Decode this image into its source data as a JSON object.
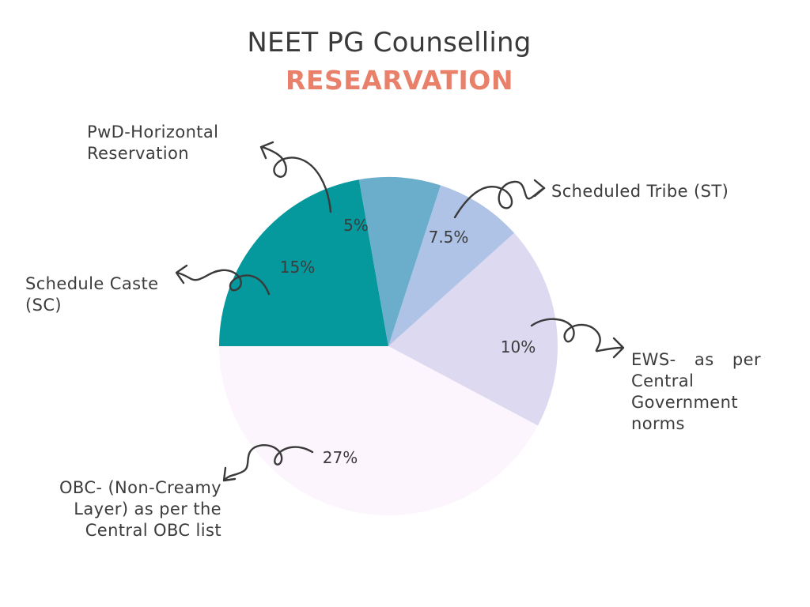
{
  "chart_data": {
    "type": "pie",
    "title": "NEET PG Counselling",
    "subtitle": "RESEARVATION",
    "slices": [
      {
        "label": "PwD-Horizontal Reservation",
        "value": 5,
        "display": "5%",
        "color": "#6aaecb"
      },
      {
        "label": "Scheduled Tribe (ST)",
        "value": 7.5,
        "display": "7.5%",
        "color": "#aec3e6"
      },
      {
        "label": "EWS- as per Central Government norms",
        "value": 10,
        "display": "10%",
        "color": "#dcd9f1"
      },
      {
        "label": "OBC- (Non-Creamy Layer) as per the Central OBC list",
        "value": 27,
        "display": "27%",
        "color": "#fdf5fd"
      },
      {
        "label": "Schedule Caste (SC)",
        "value": 15,
        "display": "15%",
        "color": "#05989c"
      }
    ],
    "labels": {
      "pwd": "PwD-Horizontal Reservation",
      "st": "Scheduled Tribe (ST)",
      "sc": "Schedule Caste (SC)",
      "ews": "EWS- as per Central Government norms",
      "obc": "OBC- (Non-Creamy Layer) as per the Central OBC list"
    },
    "legend": "none"
  }
}
